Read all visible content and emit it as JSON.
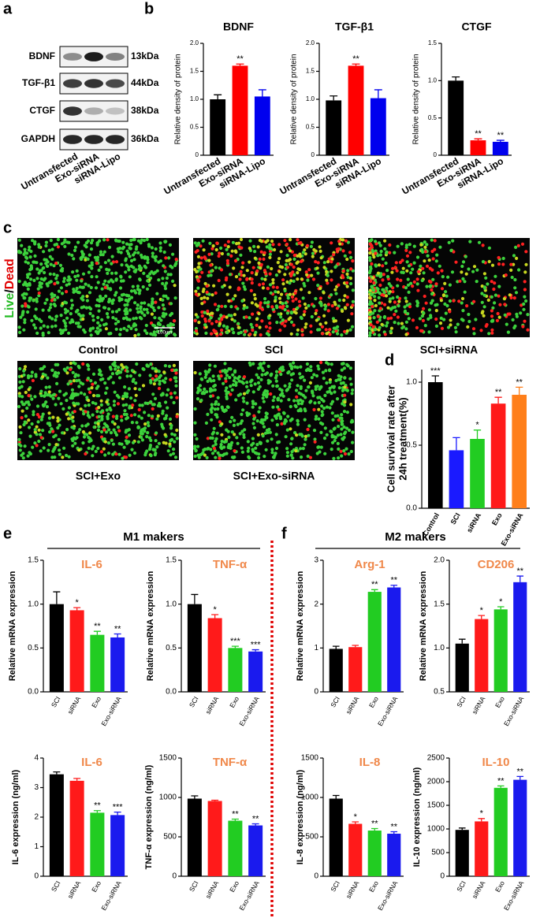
{
  "panel_labels": [
    "a",
    "b",
    "c",
    "d",
    "e",
    "f"
  ],
  "blot": {
    "proteins": [
      "BDNF",
      "TGF-β1",
      "CTGF",
      "GAPDH"
    ],
    "sizes": [
      "13kDa",
      "44kDa",
      "38kDa",
      "36kDa"
    ],
    "lanes": [
      "Untransfected",
      "Exo-siRNA",
      "siRNA-Lipo"
    ]
  },
  "micrographs": {
    "stain": [
      "Live",
      "/",
      "Dead"
    ],
    "scale_bar": "100μm",
    "captions": [
      "Control",
      "SCI",
      "SCI+siRNA",
      "SCI+Exo",
      "SCI+Exo-siRNA"
    ]
  },
  "group_headers": [
    "M1 makers",
    "M2 makers"
  ],
  "chart_data": [
    {
      "type": "bar",
      "title": "BDNF",
      "ylabel": [
        "Relative density of protein"
      ],
      "categories": [
        "Untransfected",
        "Exo-siRNA",
        "siRNA-Lipo"
      ],
      "values": [
        1.0,
        1.6,
        1.05
      ],
      "errors": [
        0.08,
        0.03,
        0.12
      ],
      "annotations": [
        null,
        "**",
        null
      ],
      "colors": [
        "#000000",
        "#ff0000",
        "#0000ee"
      ],
      "ylim": [
        0,
        2
      ],
      "yticks": [
        0,
        0.5,
        {
          "value": 1,
          "label": "1.0"
        },
        1.5,
        {
          "value": 2,
          "label": "2.0"
        }
      ]
    },
    {
      "type": "bar",
      "title": "TGF-β1",
      "ylabel": [
        "Relative density of protein"
      ],
      "categories": [
        "Untransfected",
        "Exo-siRNA",
        "siRNA-Lipo"
      ],
      "values": [
        0.98,
        1.6,
        1.02
      ],
      "errors": [
        0.08,
        0.03,
        0.15
      ],
      "annotations": [
        null,
        "**",
        null
      ],
      "colors": [
        "#000000",
        "#ff0000",
        "#0000ee"
      ],
      "ylim": [
        0,
        2
      ],
      "yticks": [
        0,
        0.5,
        {
          "value": 1,
          "label": "1.0"
        },
        1.5,
        {
          "value": 2,
          "label": "2.0"
        }
      ]
    },
    {
      "type": "bar",
      "title": "CTGF",
      "ylabel": [
        "Relative density of protein"
      ],
      "categories": [
        "Untransfected",
        "Exo-siRNA",
        "siRNA-Lipo"
      ],
      "values": [
        1.0,
        0.2,
        0.18
      ],
      "errors": [
        0.05,
        0.02,
        0.02
      ],
      "annotations": [
        null,
        "**",
        "**"
      ],
      "colors": [
        "#000000",
        "#ff0000",
        "#0000ee"
      ],
      "ylim": [
        0,
        1.5
      ],
      "yticks": [
        0,
        0.5,
        {
          "value": 1,
          "label": "1.0"
        },
        1.5
      ]
    },
    {
      "type": "bar",
      "ylabel": [
        "Cell survival rate after",
        "24h treatment(%)"
      ],
      "categories": [
        "Control",
        "SCI",
        "siRNA",
        "Exo",
        "Exo-siRNA"
      ],
      "values": [
        1.0,
        0.46,
        0.55,
        0.83,
        0.9
      ],
      "errors": [
        0.05,
        0.1,
        0.07,
        0.05,
        0.06
      ],
      "annotations": [
        "***",
        null,
        "*",
        "**",
        "**"
      ],
      "colors": [
        "#000000",
        "#1a1aff",
        "#22cc22",
        "#ff1a1a",
        "#ff7f1a"
      ],
      "ylim": [
        0,
        1.1
      ],
      "yticks": [
        {
          "value": 0,
          "label": "0.0"
        },
        0.5,
        {
          "value": 1,
          "label": "1.0"
        }
      ]
    },
    {
      "type": "bar",
      "title": "IL-6",
      "title_color": "#f0884a",
      "ylabel": [
        "Relative mRNA expression"
      ],
      "categories": [
        "SCI",
        "siRNA",
        "Exo",
        "Exo-siRNA"
      ],
      "values": [
        1.0,
        0.93,
        0.65,
        0.62
      ],
      "errors": [
        0.14,
        0.03,
        0.04,
        0.04
      ],
      "annotations": [
        null,
        "*",
        "**",
        "**"
      ],
      "colors": [
        "#000000",
        "#ff1a1a",
        "#22cc22",
        "#1a1aee"
      ],
      "ylim": [
        0,
        1.5
      ],
      "yticks": [
        {
          "value": 0,
          "label": "0.0"
        },
        0.5,
        {
          "value": 1,
          "label": "1.0"
        },
        1.5
      ]
    },
    {
      "type": "bar",
      "title": "TNF-α",
      "title_color": "#f0884a",
      "ylabel": [
        "Relative mRNA expression"
      ],
      "categories": [
        "SCI",
        "siRNA",
        "Exo",
        "Exo-siRNA"
      ],
      "values": [
        1.0,
        0.84,
        0.5,
        0.46
      ],
      "errors": [
        0.11,
        0.04,
        0.02,
        0.02
      ],
      "annotations": [
        null,
        "*",
        "***",
        "***"
      ],
      "colors": [
        "#000000",
        "#ff1a1a",
        "#22cc22",
        "#1a1aee"
      ],
      "ylim": [
        0,
        1.5
      ],
      "yticks": [
        {
          "value": 0,
          "label": "0.0"
        },
        0.5,
        {
          "value": 1,
          "label": "1.0"
        },
        1.5
      ]
    },
    {
      "type": "bar",
      "title": "Arg-1",
      "title_color": "#f0884a",
      "ylabel": [
        "Relative mRNA expression"
      ],
      "categories": [
        "SCI",
        "siRNA",
        "Exo",
        "Exo-siRNA"
      ],
      "values": [
        0.98,
        1.02,
        2.28,
        2.38
      ],
      "errors": [
        0.06,
        0.04,
        0.05,
        0.05
      ],
      "annotations": [
        null,
        null,
        "**",
        "**"
      ],
      "colors": [
        "#000000",
        "#ff1a1a",
        "#22cc22",
        "#1a1aee"
      ],
      "ylim": [
        0,
        3
      ],
      "yticks": [
        0,
        1,
        2,
        3
      ]
    },
    {
      "type": "bar",
      "title": "CD206",
      "title_color": "#f0884a",
      "ylabel": [
        "Relative mRNA expression"
      ],
      "categories": [
        "SCI",
        "siRNA",
        "Exo",
        "Exo-siRNA"
      ],
      "values": [
        1.05,
        1.33,
        1.44,
        1.75
      ],
      "errors": [
        0.05,
        0.04,
        0.03,
        0.07
      ],
      "annotations": [
        null,
        "*",
        "*",
        "**"
      ],
      "colors": [
        "#000000",
        "#ff1a1a",
        "#22cc22",
        "#1a1aee"
      ],
      "ylim": [
        0.5,
        2
      ],
      "yticks": [
        0.5,
        {
          "value": 1,
          "label": "1.0"
        },
        1.5,
        {
          "value": 2,
          "label": "2.0"
        }
      ]
    },
    {
      "type": "bar",
      "title": "IL-6",
      "title_color": "#f0884a",
      "ylabel": [
        "IL-6 expression (ng/ml)"
      ],
      "categories": [
        "SCI",
        "siRNA",
        "Exo",
        "Exo-siRNA"
      ],
      "values": [
        3.45,
        3.23,
        2.15,
        2.07
      ],
      "errors": [
        0.08,
        0.08,
        0.07,
        0.1
      ],
      "annotations": [
        null,
        null,
        "**",
        "***"
      ],
      "colors": [
        "#000000",
        "#ff1a1a",
        "#22cc22",
        "#1a1aee"
      ],
      "ylim": [
        0,
        4
      ],
      "yticks": [
        0,
        1,
        2,
        3,
        4
      ]
    },
    {
      "type": "bar",
      "title": "TNF-α",
      "title_color": "#f0884a",
      "ylabel": [
        "TNF-α expression (ng/ml)"
      ],
      "categories": [
        "SCI",
        "siRNA",
        "Exo",
        "Exo-siRNA"
      ],
      "values": [
        985,
        955,
        705,
        645
      ],
      "errors": [
        35,
        10,
        20,
        20
      ],
      "annotations": [
        null,
        null,
        "**",
        "**"
      ],
      "colors": [
        "#000000",
        "#ff1a1a",
        "#22cc22",
        "#1a1aee"
      ],
      "ylim": [
        0,
        1500
      ],
      "yticks": [
        0,
        500,
        1000,
        1500
      ]
    },
    {
      "type": "bar",
      "title": "IL-8",
      "title_color": "#f0884a",
      "ylabel": [
        "IL-8 expression (ng/ml)"
      ],
      "categories": [
        "SCI",
        "siRNA",
        "Exo",
        "Exo-siRNA"
      ],
      "values": [
        985,
        665,
        580,
        540
      ],
      "errors": [
        40,
        25,
        25,
        25
      ],
      "annotations": [
        null,
        "*",
        "**",
        "**"
      ],
      "colors": [
        "#000000",
        "#ff1a1a",
        "#22cc22",
        "#1a1aee"
      ],
      "ylim": [
        0,
        1500
      ],
      "yticks": [
        0,
        500,
        1000,
        1500
      ]
    },
    {
      "type": "bar",
      "title": "IL-10",
      "title_color": "#f0884a",
      "ylabel": [
        "IL-10 expression (ng/ml)"
      ],
      "categories": [
        "SCI",
        "siRNA",
        "Exo",
        "Exo-siRNA"
      ],
      "values": [
        980,
        1160,
        1870,
        2040
      ],
      "errors": [
        40,
        60,
        40,
        70
      ],
      "annotations": [
        null,
        "*",
        "**",
        "**"
      ],
      "colors": [
        "#000000",
        "#ff1a1a",
        "#22cc22",
        "#1a1aee"
      ],
      "ylim": [
        0,
        2500
      ],
      "yticks": [
        0,
        500,
        1000,
        1500,
        2000,
        2500
      ]
    }
  ]
}
